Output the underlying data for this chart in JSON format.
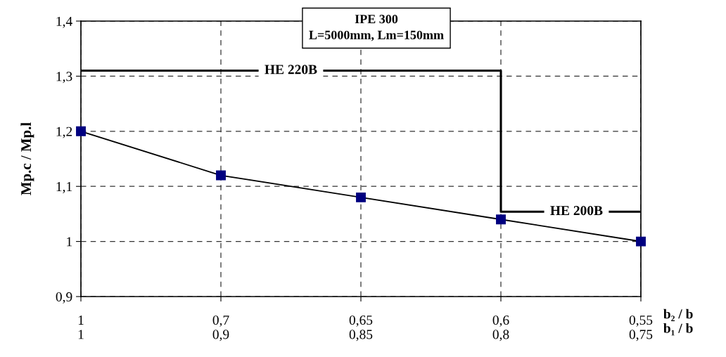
{
  "chart_data": {
    "type": "line",
    "title": "IPE 300\nL=5000mm, Lm=150mm",
    "ylabel": "Mp.c / Mp.l",
    "xlabel": "b₂ / b\nb₁ / b",
    "categories": [
      "1\n1",
      "0,7\n0,9",
      "0,65\n0,85",
      "0,6\n0,8",
      "0,55\n0,75"
    ],
    "ylim": [
      0.9,
      1.4
    ],
    "yticks": [
      {
        "value": 0.9,
        "label": "0,9"
      },
      {
        "value": 1.0,
        "label": "1"
      },
      {
        "value": 1.1,
        "label": "1,1"
      },
      {
        "value": 1.2,
        "label": "1,2"
      },
      {
        "value": 1.3,
        "label": "1,3"
      },
      {
        "value": 1.4,
        "label": "1,4"
      }
    ],
    "annotations": [
      "HE 220B",
      "HE 200B"
    ],
    "grid": true,
    "line_style": "solid",
    "series": [
      {
        "marker": "square",
        "color": "#000080",
        "values": [
          1.2,
          1.12,
          1.08,
          1.04,
          1.0
        ]
      },
      {
        "type": "step",
        "color": "#000000",
        "values": [
          1.31,
          1.31,
          1.31,
          1.054,
          1.054
        ]
      }
    ]
  }
}
